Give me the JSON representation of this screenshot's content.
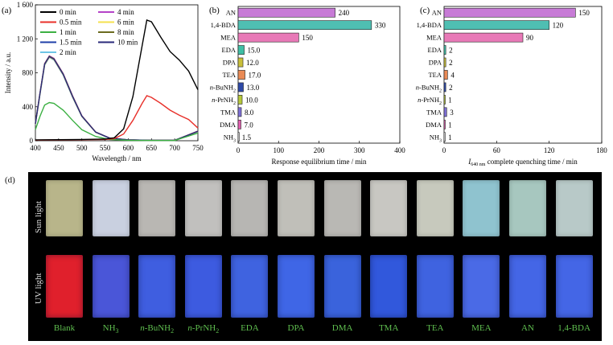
{
  "panels": {
    "a": "(a)",
    "b": "(b)",
    "c": "(c)",
    "d": "(d)"
  },
  "chart_data": [
    {
      "type": "line",
      "panel": "(a)",
      "xlabel": "Wavelength / nm",
      "ylabel": "Intensity / a.u.",
      "xlim": [
        400,
        750
      ],
      "ylim": [
        0,
        1600
      ],
      "xticks": [
        "400",
        "450",
        "500",
        "550",
        "600",
        "650",
        "700",
        "750"
      ],
      "yticks": [
        "0",
        "400",
        "800",
        "1 200",
        "1 600"
      ],
      "legend_position": "top",
      "series": [
        {
          "name": "0 min",
          "color": "#000000",
          "x": [
            400,
            450,
            500,
            550,
            570,
            590,
            610,
            630,
            640,
            650,
            670,
            690,
            710,
            730,
            750
          ],
          "y": [
            10,
            12,
            15,
            20,
            35,
            140,
            520,
            1120,
            1420,
            1400,
            1220,
            1050,
            950,
            820,
            600
          ]
        },
        {
          "name": "0.5 min",
          "color": "#e8302a",
          "x": [
            400,
            450,
            500,
            550,
            570,
            590,
            610,
            630,
            640,
            650,
            670,
            690,
            710,
            730,
            750
          ],
          "y": [
            8,
            10,
            12,
            15,
            25,
            80,
            240,
            440,
            530,
            510,
            440,
            360,
            300,
            250,
            150
          ]
        },
        {
          "name": "1 min",
          "color": "#3cb043",
          "x": [
            400,
            410,
            420,
            430,
            440,
            460,
            480,
            500,
            530,
            560,
            600,
            650,
            700,
            750
          ],
          "y": [
            130,
            290,
            420,
            450,
            440,
            360,
            240,
            130,
            50,
            15,
            5,
            3,
            3,
            90
          ]
        },
        {
          "name": "1.5 min",
          "color": "#1f3fa8",
          "x": [
            400,
            410,
            420,
            430,
            440,
            460,
            480,
            500,
            530,
            560,
            600,
            650,
            700,
            750
          ],
          "y": [
            200,
            560,
            900,
            990,
            960,
            780,
            520,
            290,
            100,
            30,
            10,
            5,
            5,
            110
          ]
        },
        {
          "name": "2 min",
          "color": "#6ec6e6",
          "x": [
            400,
            410,
            420,
            430,
            440,
            460,
            480,
            500,
            530,
            560,
            600,
            650,
            700,
            750
          ],
          "y": [
            195,
            550,
            890,
            980,
            950,
            770,
            510,
            285,
            98,
            28,
            9,
            4,
            4,
            105
          ]
        },
        {
          "name": "4 min",
          "color": "#b543c8",
          "x": [
            400,
            410,
            420,
            430,
            440,
            460,
            480,
            500,
            530,
            560,
            600,
            650,
            700,
            750
          ],
          "y": [
            205,
            570,
            910,
            1000,
            970,
            790,
            530,
            295,
            102,
            32,
            11,
            5,
            5,
            115
          ]
        },
        {
          "name": "6 min",
          "color": "#f4e04d",
          "x": [
            400,
            410,
            420,
            430,
            440,
            460,
            480,
            500,
            530,
            560,
            600,
            650,
            700,
            750
          ],
          "y": [
            198,
            555,
            895,
            985,
            955,
            775,
            515,
            288,
            99,
            29,
            10,
            4,
            4,
            108
          ]
        },
        {
          "name": "8 min",
          "color": "#6b6b1f",
          "x": [
            400,
            410,
            420,
            430,
            440,
            460,
            480,
            500,
            530,
            560,
            600,
            650,
            700,
            750
          ],
          "y": [
            202,
            565,
            905,
            995,
            965,
            785,
            525,
            292,
            101,
            31,
            10,
            5,
            5,
            112
          ]
        },
        {
          "name": "10 min",
          "color": "#2a2a7a",
          "x": [
            400,
            410,
            420,
            430,
            440,
            460,
            480,
            500,
            530,
            560,
            600,
            650,
            700,
            750
          ],
          "y": [
            200,
            560,
            900,
            990,
            960,
            780,
            520,
            290,
            100,
            30,
            10,
            5,
            5,
            110
          ]
        }
      ]
    },
    {
      "type": "bar",
      "panel": "(b)",
      "orientation": "horizontal",
      "xlabel": "Response equilibrium time / min",
      "xlim": [
        0,
        400
      ],
      "xticks": [
        "0",
        "100",
        "200",
        "300",
        "400"
      ],
      "categories": [
        "AN",
        "1,4-BDA",
        "MEA",
        "EDA",
        "DPA",
        "TEA",
        "n-BuNH2",
        "n-PrNH2",
        "TMA",
        "DMA",
        "NH3"
      ],
      "values": [
        240,
        330,
        150,
        15.0,
        12.0,
        17.0,
        13.0,
        10.0,
        8.0,
        7.0,
        1.5
      ],
      "value_labels": [
        "240",
        "330",
        "150",
        "15.0",
        "12.0",
        "17.0",
        "13.0",
        "10.0",
        "8.0",
        "7.0",
        "1.5"
      ],
      "colors": [
        "#c77bd6",
        "#4fbfb2",
        "#e879b7",
        "#3fbfa5",
        "#c9bf3a",
        "#e98a55",
        "#2e4aa8",
        "#b6c83a",
        "#7d6fd6",
        "#e25fb0",
        "#eeeeee"
      ]
    },
    {
      "type": "bar",
      "panel": "(c)",
      "orientation": "horizontal",
      "xlabel_parts": {
        "pre": "I",
        "sub": "640 nm",
        "post": " complete quenching time / min"
      },
      "xlim": [
        0,
        180
      ],
      "xticks": [
        "0",
        "60",
        "120",
        "180"
      ],
      "categories": [
        "AN",
        "1,4-BDA",
        "MEA",
        "EDA",
        "DPA",
        "TEA",
        "n-BuNH2",
        "n-PrNH2",
        "TMA",
        "DMA",
        "NH3"
      ],
      "values": [
        150,
        120,
        90,
        2,
        2,
        4,
        2,
        1,
        3,
        1,
        1
      ],
      "value_labels": [
        "150",
        "120",
        "90",
        "2",
        "2",
        "4",
        "2",
        "1",
        "3",
        "1",
        "1"
      ],
      "colors": [
        "#c77bd6",
        "#4fbfb2",
        "#e879b7",
        "#3fbfa5",
        "#c9bf3a",
        "#e98a55",
        "#2e4aa8",
        "#b6c83a",
        "#7d6fd6",
        "#e25fb0",
        "#eeeeee"
      ]
    }
  ],
  "photo": {
    "row_labels": [
      "Sun light",
      "UV light"
    ],
    "samples": [
      "Blank",
      "NH3",
      "n-BuNH2",
      "n-PrNH2",
      "EDA",
      "DPA",
      "DMA",
      "TMA",
      "TEA",
      "MEA",
      "AN",
      "1,4-BDA"
    ],
    "sun_colors": [
      "#b8b58a",
      "#c9d0e0",
      "#b9b7b3",
      "#c1c0be",
      "#b7b6b3",
      "#c0bfb9",
      "#b9b8b4",
      "#c8c7c2",
      "#c7c9bd",
      "#8fc3cf",
      "#a7c7bf",
      "#b8c9c8"
    ],
    "uv_colors": [
      "#e0202c",
      "#4a56d8",
      "#3f5ee0",
      "#3d5be0",
      "#3f63e0",
      "#3f66e6",
      "#3a63dc",
      "#3158dc",
      "#3f63e0",
      "#4a6ae6",
      "#4466e6",
      "#4466e6"
    ]
  }
}
